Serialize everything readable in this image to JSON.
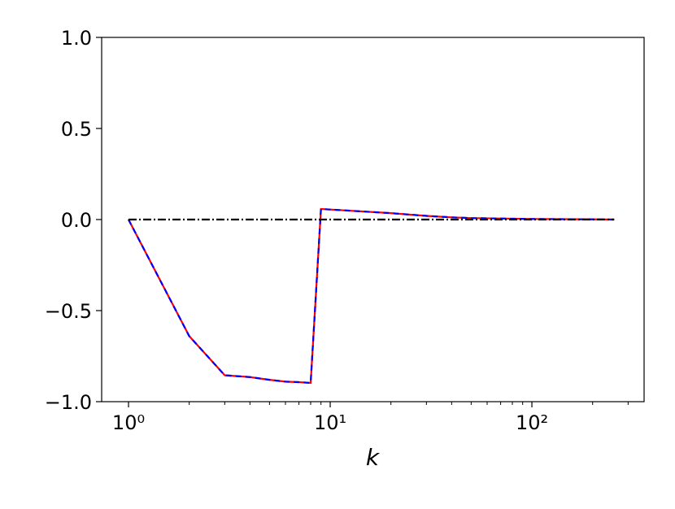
{
  "chart_data": {
    "type": "line",
    "x_label": "k",
    "x_log": true,
    "x": [
      1,
      2,
      3,
      4,
      5,
      6,
      7,
      8,
      9,
      10,
      20,
      30,
      40,
      50,
      100,
      200,
      256
    ],
    "series": [
      {
        "color": "#ff0000",
        "dash": "solid",
        "values": [
          0,
          -0.64,
          -0.855,
          -0.865,
          -0.88,
          -0.89,
          -0.893,
          -0.897,
          0.058,
          0.055,
          0.035,
          0.02,
          0.012,
          0.008,
          0.003,
          0.001,
          0
        ]
      },
      {
        "color": "#0000ff",
        "dash": "dashed",
        "values": [
          0,
          -0.64,
          -0.855,
          -0.865,
          -0.88,
          -0.89,
          -0.893,
          -0.897,
          0.058,
          0.055,
          0.035,
          0.02,
          0.012,
          0.008,
          0.003,
          0.001,
          0
        ]
      },
      {
        "color": "#000000",
        "dash": "dashdot",
        "values": [
          0,
          0,
          0,
          0,
          0,
          0,
          0,
          0,
          0,
          0,
          0,
          0,
          0,
          0,
          0,
          0,
          0
        ]
      }
    ],
    "xlim": [
      0.736,
      360
    ],
    "ylim": [
      -1,
      1
    ],
    "xticks": [
      {
        "value": 1,
        "label": "10⁰"
      },
      {
        "value": 10,
        "label": "10¹"
      },
      {
        "value": 100,
        "label": "10²"
      }
    ],
    "xminorticks": [
      2,
      3,
      4,
      5,
      6,
      7,
      8,
      9,
      20,
      30,
      40,
      50,
      60,
      70,
      80,
      90,
      200,
      300
    ],
    "yticks": [
      {
        "value": -1,
        "label": "−1.0"
      },
      {
        "value": -0.5,
        "label": "−0.5"
      },
      {
        "value": 0,
        "label": "0.0"
      },
      {
        "value": 0.5,
        "label": "0.5"
      },
      {
        "value": 1,
        "label": "1.0"
      }
    ]
  }
}
